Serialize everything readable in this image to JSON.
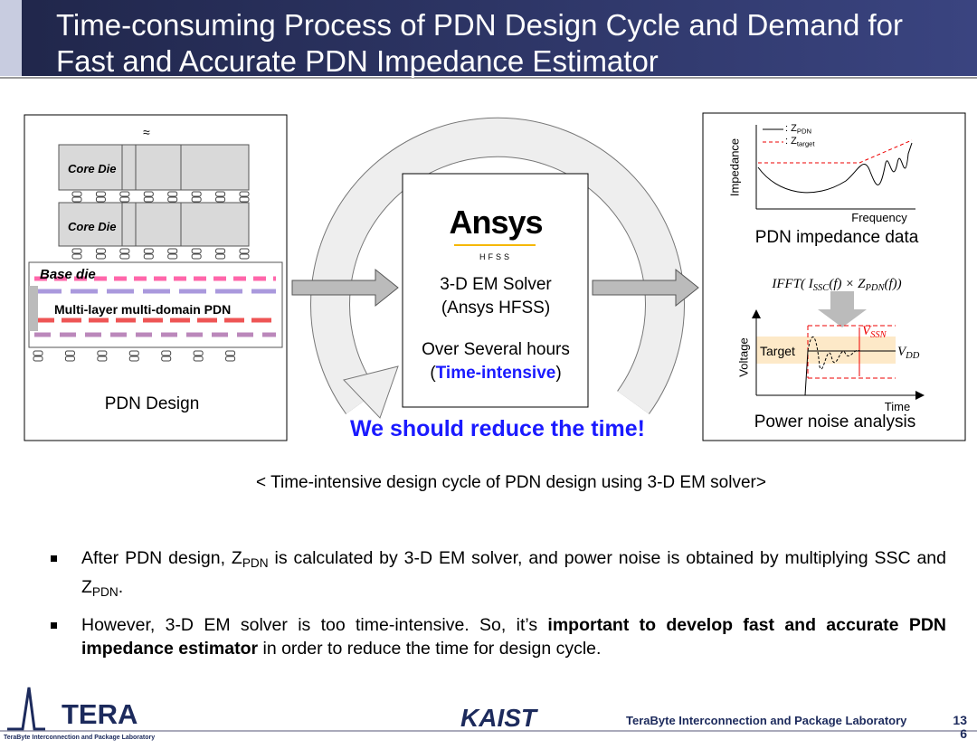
{
  "header": {
    "title": "Time-consuming Process of PDN Design Cycle and Demand for Fast and Accurate PDN Impedance Estimator"
  },
  "diagram": {
    "pdn_design": {
      "approx": "≈",
      "core_die_labels": [
        "Core Die",
        "Core Die"
      ],
      "base_die": "Base die",
      "pdn_label": "Multi-layer multi-domain PDN",
      "caption": "PDN Design"
    },
    "solver": {
      "logo": "Ansys",
      "logo_sub": "HFSS",
      "lines": [
        "3-D EM Solver",
        "(Ansys HFSS)",
        "Over Several hours"
      ],
      "note": [
        {
          "text": "(",
          "style": "normal"
        },
        {
          "text": "Time-intensive",
          "style": "highlight"
        },
        {
          "text": ")",
          "style": "normal"
        }
      ]
    },
    "callout": "We should reduce the time!",
    "impedance": {
      "y_label": "Impedance",
      "x_label": "Frequency",
      "legend": [
        [
          {
            "text": ": Z",
            "style": "normal"
          },
          {
            "text": "PDN",
            "style": "sub"
          }
        ],
        [
          {
            "text": ": Z",
            "style": "normal"
          },
          {
            "text": "target",
            "style": "sub"
          }
        ]
      ],
      "caption": "PDN impedance data"
    },
    "formula": [
      {
        "text": "IFFT( I",
        "style": "normal"
      },
      {
        "text": "SSC",
        "style": "sub"
      },
      {
        "text": "(f) × Z",
        "style": "normal"
      },
      {
        "text": "PDN",
        "style": "sub"
      },
      {
        "text": "(f))",
        "style": "normal"
      }
    ],
    "noise": {
      "y_label": "Voltage",
      "x_label": "Time",
      "target": "Target",
      "vssn": [
        {
          "text": "V",
          "style": "normal"
        },
        {
          "text": "SSN",
          "style": "sub"
        }
      ],
      "vdd": [
        {
          "text": "V",
          "style": "normal"
        },
        {
          "text": "DD",
          "style": "sub"
        }
      ],
      "caption": "Power noise analysis"
    },
    "figure_caption": "< Time-intensive design cycle of PDN design using 3-D EM solver>"
  },
  "bullets": [
    [
      {
        "text": "After PDN design, Z",
        "style": "normal"
      },
      {
        "text": "PDN",
        "style": "sub"
      },
      {
        "text": " is calculated by 3-D EM solver, and power noise is obtained by multiplying SSC and Z",
        "style": "normal"
      },
      {
        "text": "PDN",
        "style": "sub"
      },
      {
        "text": ".",
        "style": "normal"
      }
    ],
    [
      {
        "text": "However, 3-D EM solver is too time-intensive. So, it’s ",
        "style": "normal"
      },
      {
        "text": "important to develop fast and accurate PDN impedance estimator",
        "style": "bold"
      },
      {
        "text": " in order to reduce the time for design cycle.",
        "style": "normal"
      }
    ]
  ],
  "footer": {
    "logo": "TERA",
    "logo_sub": "TeraByte Interconnection and Package Laboratory",
    "university": "KAIST",
    "lab": "TeraByte Interconnection and Package Laboratory",
    "page_number": "136"
  }
}
